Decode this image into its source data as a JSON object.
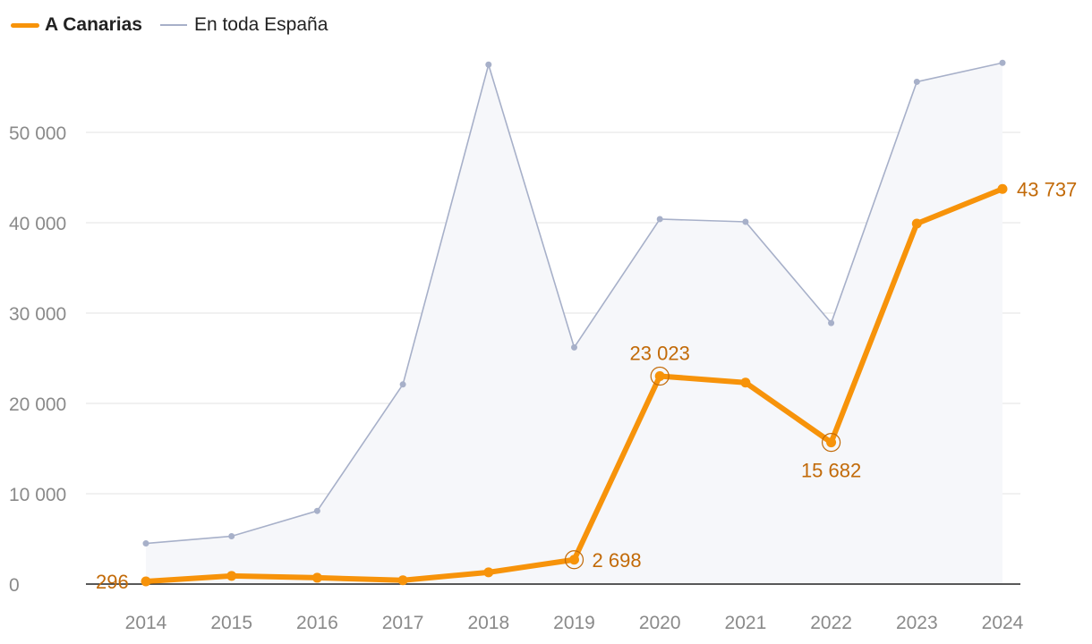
{
  "chart_data": {
    "type": "line",
    "title": "",
    "xlabel": "",
    "ylabel": "",
    "categories": [
      "2014",
      "2015",
      "2016",
      "2017",
      "2018",
      "2019",
      "2020",
      "2021",
      "2022",
      "2023",
      "2024"
    ],
    "ylim": [
      0,
      60000
    ],
    "yticks": [
      0,
      10000,
      20000,
      30000,
      40000,
      50000
    ],
    "ytick_labels": [
      "0",
      "10 000",
      "20 000",
      "30 000",
      "40 000",
      "50 000"
    ],
    "grid": true,
    "legend": "top-left",
    "series": [
      {
        "name": "A Canarias",
        "color": "#f7930a",
        "values": [
          296,
          900,
          700,
          420,
          1300,
          2698,
          23023,
          22300,
          15682,
          39900,
          43737
        ]
      },
      {
        "name": "En toda España",
        "color": "#a7b0c9",
        "values": [
          4500,
          5300,
          8100,
          22100,
          57500,
          26200,
          40400,
          40100,
          28900,
          55600,
          57700
        ]
      }
    ],
    "annotations": [
      {
        "series": "A Canarias",
        "category": "2014",
        "label": "296"
      },
      {
        "series": "A Canarias",
        "category": "2019",
        "label": "2 698"
      },
      {
        "series": "A Canarias",
        "category": "2020",
        "label": "23 023"
      },
      {
        "series": "A Canarias",
        "category": "2022",
        "label": "15 682"
      },
      {
        "series": "A Canarias",
        "category": "2024",
        "label": "43 737"
      }
    ]
  }
}
